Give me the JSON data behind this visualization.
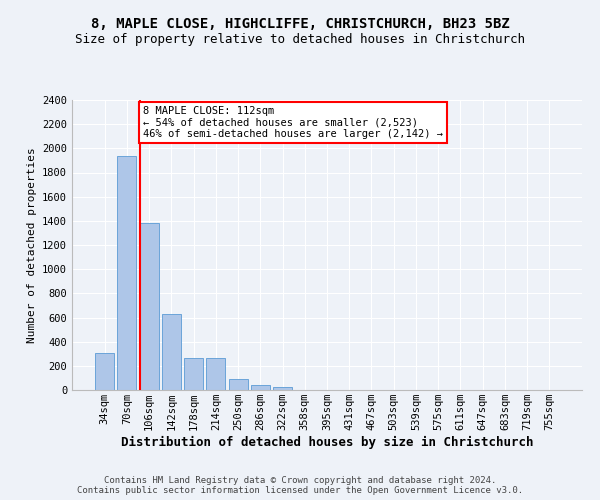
{
  "title": "8, MAPLE CLOSE, HIGHCLIFFE, CHRISTCHURCH, BH23 5BZ",
  "subtitle": "Size of property relative to detached houses in Christchurch",
  "xlabel": "Distribution of detached houses by size in Christchurch",
  "ylabel": "Number of detached properties",
  "categories": [
    "34sqm",
    "70sqm",
    "106sqm",
    "142sqm",
    "178sqm",
    "214sqm",
    "250sqm",
    "286sqm",
    "322sqm",
    "358sqm",
    "395sqm",
    "431sqm",
    "467sqm",
    "503sqm",
    "539sqm",
    "575sqm",
    "611sqm",
    "647sqm",
    "683sqm",
    "719sqm",
    "755sqm"
  ],
  "bar_values": [
    310,
    1940,
    1380,
    630,
    265,
    265,
    95,
    40,
    25,
    0,
    0,
    0,
    0,
    0,
    0,
    0,
    0,
    0,
    0,
    0,
    0
  ],
  "bar_color": "#aec6e8",
  "bar_edge_color": "#5b9bd5",
  "highlight_index": 2,
  "annotation_text": "8 MAPLE CLOSE: 112sqm\n← 54% of detached houses are smaller (2,523)\n46% of semi-detached houses are larger (2,142) →",
  "annotation_box_color": "white",
  "annotation_box_edge_color": "red",
  "ylim": [
    0,
    2400
  ],
  "yticks": [
    0,
    200,
    400,
    600,
    800,
    1000,
    1200,
    1400,
    1600,
    1800,
    2000,
    2200,
    2400
  ],
  "footer_line1": "Contains HM Land Registry data © Crown copyright and database right 2024.",
  "footer_line2": "Contains public sector information licensed under the Open Government Licence v3.0.",
  "background_color": "#eef2f8",
  "grid_color": "#ffffff",
  "title_fontsize": 10,
  "subtitle_fontsize": 9,
  "ylabel_fontsize": 8,
  "xlabel_fontsize": 9,
  "tick_fontsize": 7.5,
  "annotation_fontsize": 7.5,
  "footer_fontsize": 6.5
}
